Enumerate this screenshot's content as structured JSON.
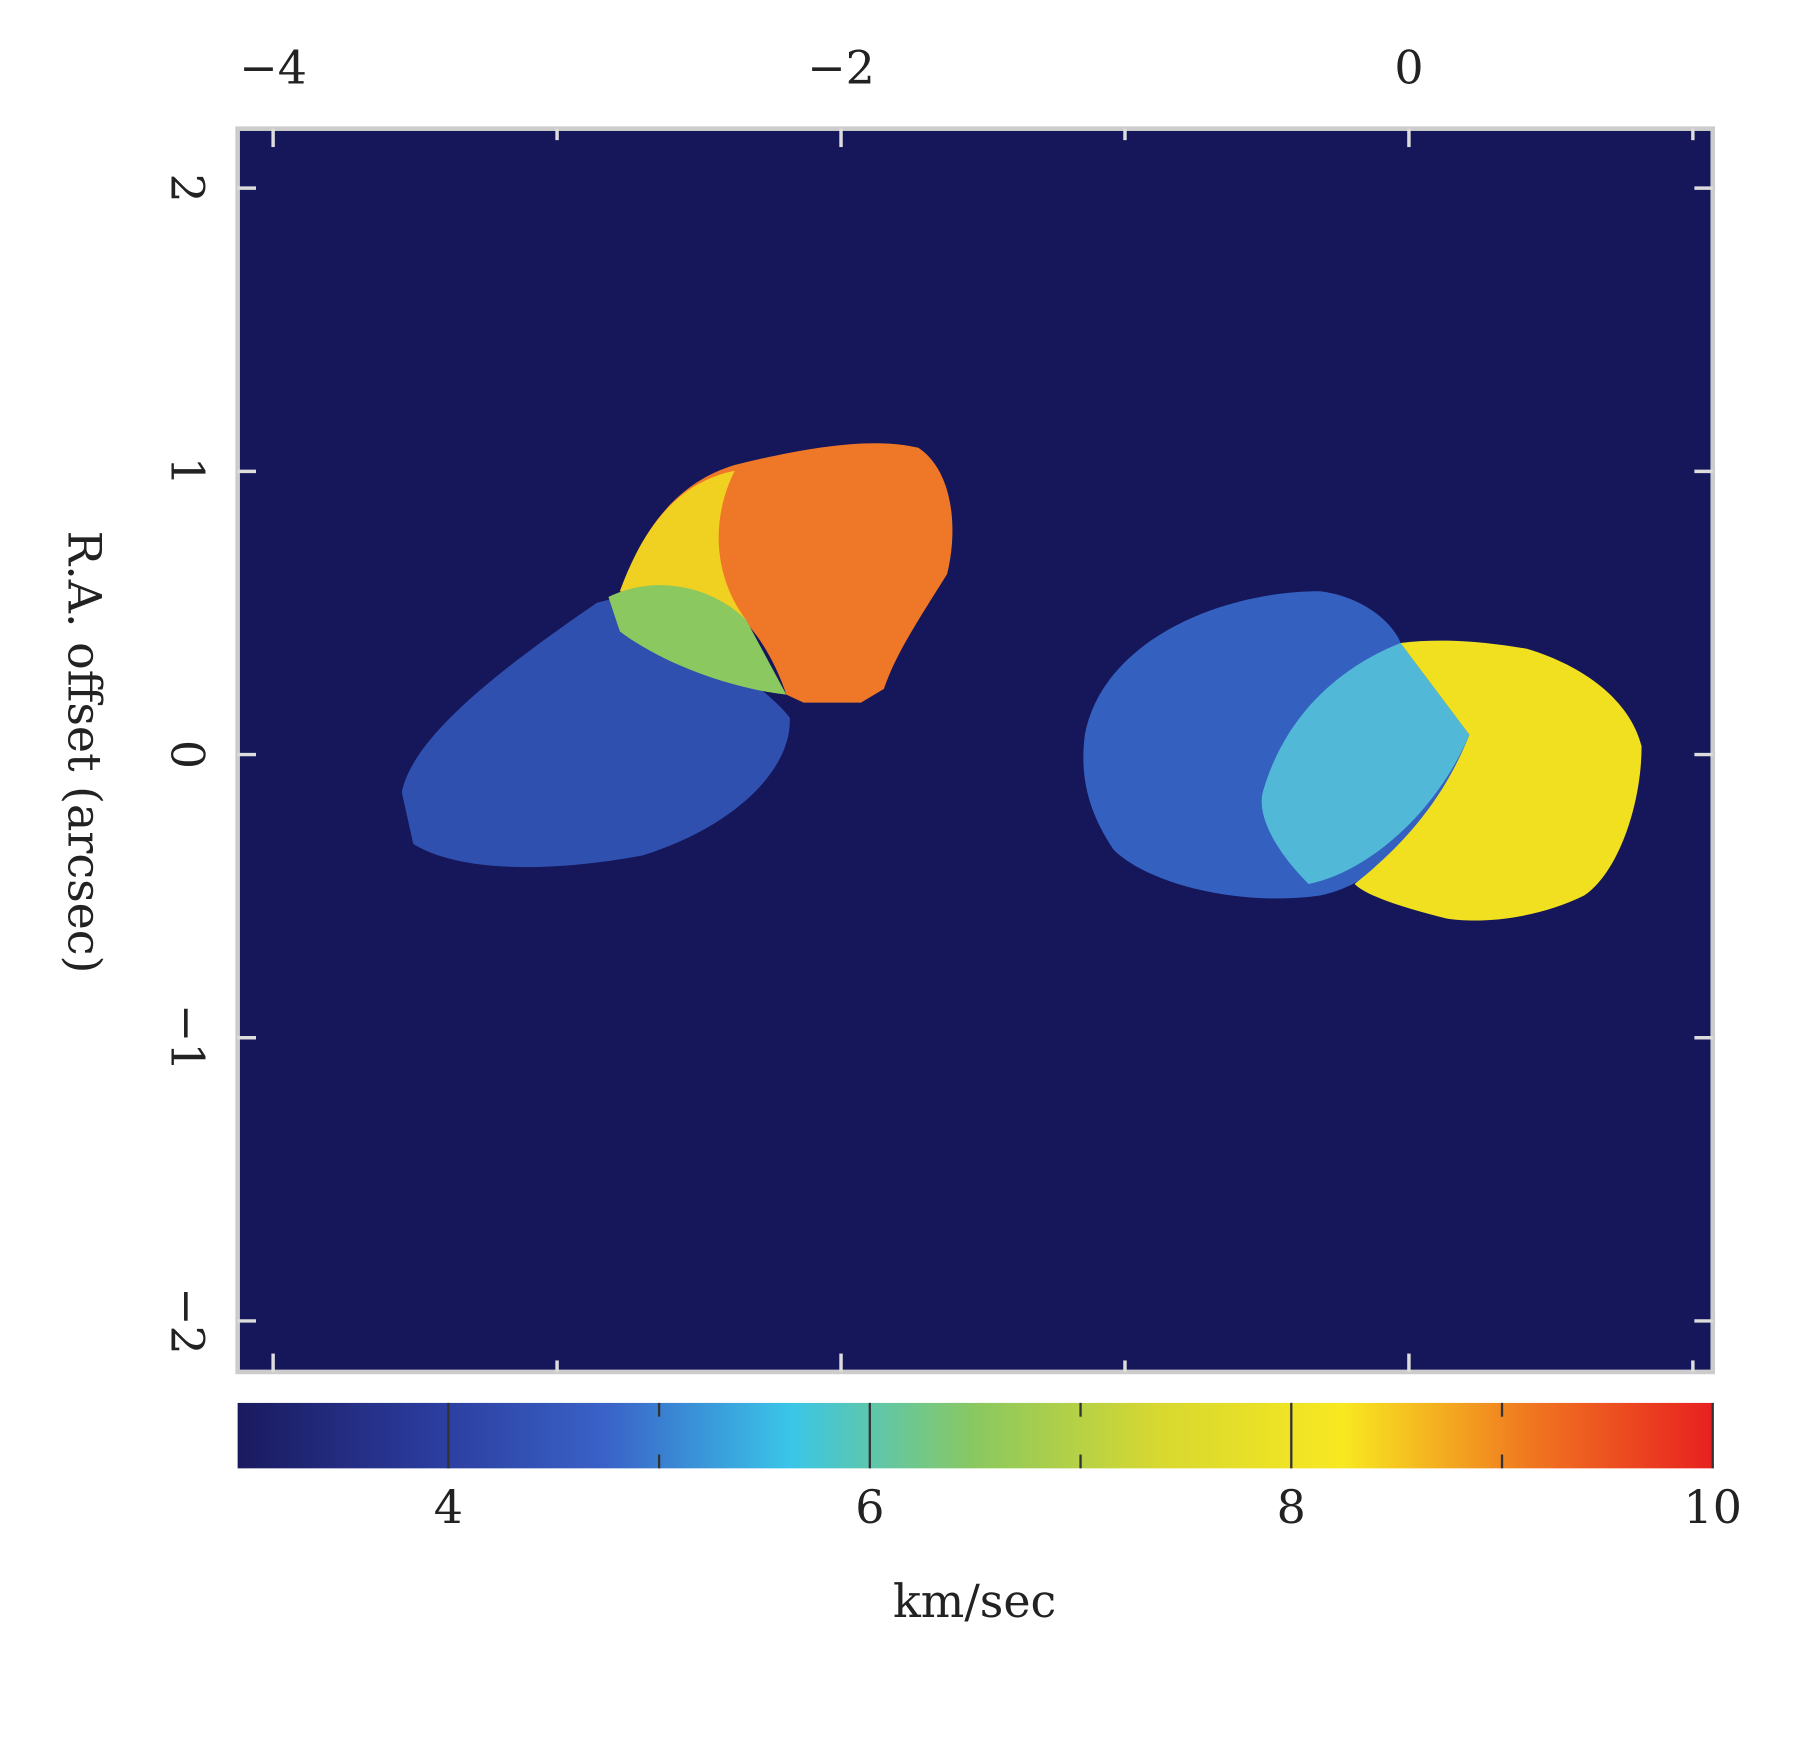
{
  "chart_data": {
    "type": "image",
    "y_label": "R.A. offset (arcsec)",
    "xlim": [
      -4.125,
      1.07
    ],
    "xticks": [
      {
        "value": -4,
        "label": "−4"
      },
      {
        "value": -2,
        "label": "−2"
      },
      0
    ],
    "xminor": [
      -3,
      -1,
      1
    ],
    "ylim": [
      -2.18,
      2.21
    ],
    "yticks": [
      {
        "value": -2,
        "label": "−2"
      },
      {
        "value": -1,
        "label": "−1"
      },
      0,
      1,
      2
    ],
    "background": "#15175a",
    "colorbar": {
      "label": "km/sec",
      "clim": [
        3,
        10
      ],
      "ticks": [
        4,
        6,
        8,
        10
      ],
      "minor": [
        5,
        7,
        9
      ],
      "colors": [
        "#1a1a5e",
        "#2a3a9a",
        "#3a62c8",
        "#3ac6e8",
        "#8ac860",
        "#d8d830",
        "#f8e820",
        "#f07820",
        "#e82020"
      ]
    }
  }
}
